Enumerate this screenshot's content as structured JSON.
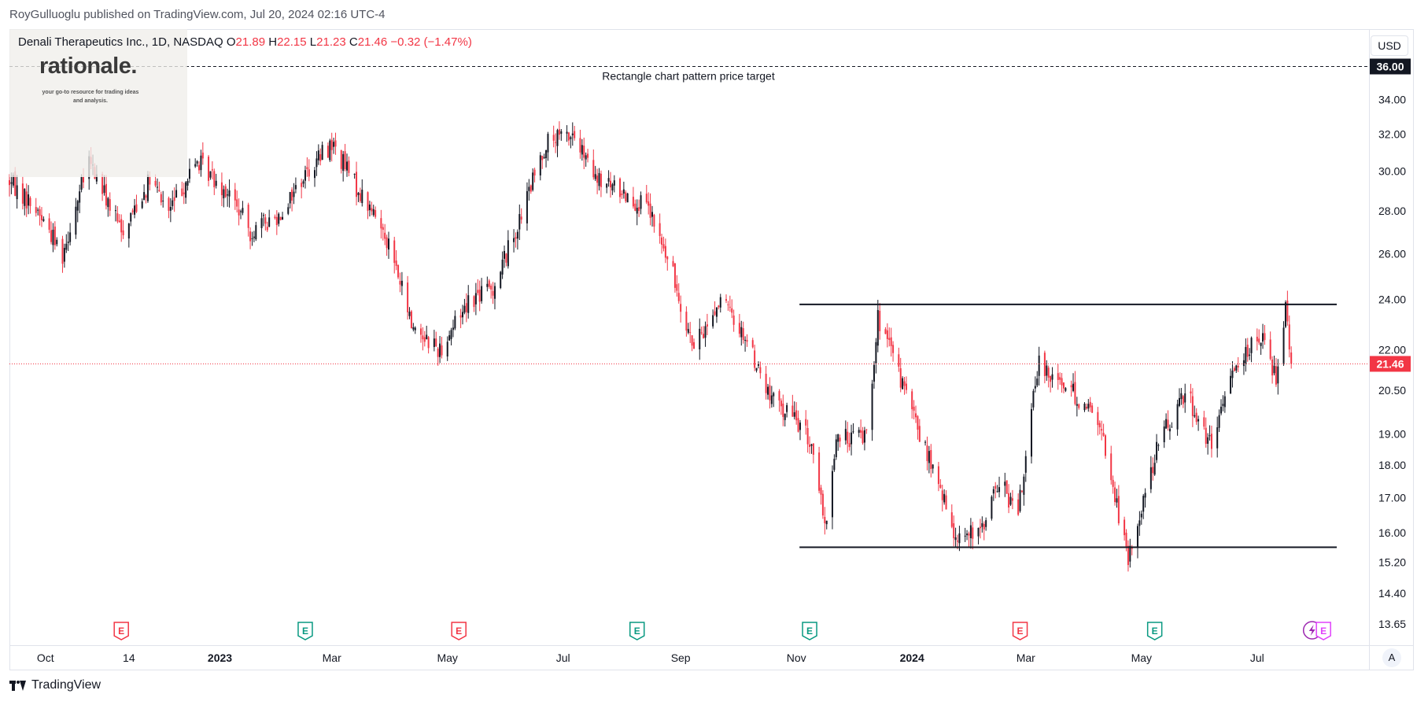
{
  "header": {
    "publisher": "RoyGulluoglu published on TradingView.com, Jul 20, 2024 02:16 UTC-4"
  },
  "legend": {
    "symbol": "Denali Therapeutics Inc., 1D, NASDAQ",
    "open_label": "O",
    "open": "21.89",
    "high_label": "H",
    "high": "22.15",
    "low_label": "L",
    "low": "21.23",
    "close_label": "C",
    "close": "21.46",
    "change": "−0.32 (−1.47%)"
  },
  "watermark": {
    "title": "rationale.",
    "subtitle": "your go-to resource for trading ideas and analysis."
  },
  "currency": "USD",
  "footer": {
    "brand": "TradingView",
    "auto_label": "A"
  },
  "colors": {
    "down": "#f23645",
    "up": "#131722",
    "earnings": "#f23645",
    "earnings_alt": "#089981",
    "dividend": "#9c27b0"
  },
  "chart_data": {
    "type": "candlestick",
    "title": "Denali Therapeutics Inc., 1D, NASDAQ",
    "y_scale": "log",
    "ylim": [
      13.3,
      38.0
    ],
    "y_ticks": [
      {
        "value": 34.0,
        "label": "34.00"
      },
      {
        "value": 32.0,
        "label": "32.00"
      },
      {
        "value": 30.0,
        "label": "30.00"
      },
      {
        "value": 28.0,
        "label": "28.00"
      },
      {
        "value": 26.0,
        "label": "26.00"
      },
      {
        "value": 24.0,
        "label": "24.00"
      },
      {
        "value": 22.0,
        "label": "22.00"
      },
      {
        "value": 20.5,
        "label": "20.50"
      },
      {
        "value": 19.0,
        "label": "19.00"
      },
      {
        "value": 18.0,
        "label": "18.00"
      },
      {
        "value": 17.0,
        "label": "17.00"
      },
      {
        "value": 16.0,
        "label": "16.00"
      },
      {
        "value": 15.2,
        "label": "15.20"
      },
      {
        "value": 14.4,
        "label": "14.40"
      },
      {
        "value": 13.65,
        "label": "13.65"
      }
    ],
    "x_ticks": [
      {
        "date": "2022-10-01",
        "label": "Oct",
        "bold": false
      },
      {
        "date": "2022-11-14",
        "label": "14",
        "bold": false
      },
      {
        "date": "2023-01-01",
        "label": "2023",
        "bold": true
      },
      {
        "date": "2023-03-01",
        "label": "Mar",
        "bold": false
      },
      {
        "date": "2023-05-01",
        "label": "May",
        "bold": false
      },
      {
        "date": "2023-07-01",
        "label": "Jul",
        "bold": false
      },
      {
        "date": "2023-09-01",
        "label": "Sep",
        "bold": false
      },
      {
        "date": "2023-11-01",
        "label": "Nov",
        "bold": false
      },
      {
        "date": "2024-01-01",
        "label": "2024",
        "bold": true
      },
      {
        "date": "2024-03-01",
        "label": "Mar",
        "bold": false
      },
      {
        "date": "2024-05-01",
        "label": "May",
        "bold": false
      },
      {
        "date": "2024-07-01",
        "label": "Jul",
        "bold": false
      }
    ],
    "xlim": [
      "2022-09-12",
      "2024-08-29"
    ],
    "anchors": [
      [
        "2022-09-12",
        29.5
      ],
      [
        "2022-09-27",
        28.0
      ],
      [
        "2022-10-10",
        26.0
      ],
      [
        "2022-10-24",
        30.5
      ],
      [
        "2022-11-10",
        27.0
      ],
      [
        "2022-11-25",
        29.5
      ],
      [
        "2022-12-05",
        28.0
      ],
      [
        "2022-12-20",
        30.5
      ],
      [
        "2023-01-05",
        29.0
      ],
      [
        "2023-01-17",
        27.0
      ],
      [
        "2023-02-01",
        27.8
      ],
      [
        "2023-02-16",
        30.0
      ],
      [
        "2023-03-01",
        31.5
      ],
      [
        "2023-03-15",
        29.0
      ],
      [
        "2023-03-29",
        27.0
      ],
      [
        "2023-04-12",
        23.0
      ],
      [
        "2023-04-27",
        22.0
      ],
      [
        "2023-05-12",
        24.0
      ],
      [
        "2023-05-25",
        24.5
      ],
      [
        "2023-06-08",
        27.5
      ],
      [
        "2023-06-22",
        31.5
      ],
      [
        "2023-07-06",
        32.0
      ],
      [
        "2023-07-18",
        29.5
      ],
      [
        "2023-08-01",
        29.0
      ],
      [
        "2023-08-15",
        28.0
      ],
      [
        "2023-08-28",
        25.0
      ],
      [
        "2023-09-08",
        22.0
      ],
      [
        "2023-09-22",
        24.0
      ],
      [
        "2023-10-05",
        22.5
      ],
      [
        "2023-10-18",
        20.2
      ],
      [
        "2023-11-01",
        19.5
      ],
      [
        "2023-11-10",
        18.5
      ],
      [
        "2023-11-16",
        16.0
      ],
      [
        "2023-11-22",
        18.8
      ],
      [
        "2023-12-08",
        19.0
      ],
      [
        "2023-12-14",
        23.2
      ],
      [
        "2024-01-05",
        19.0
      ],
      [
        "2024-01-23",
        16.0
      ],
      [
        "2024-02-05",
        15.9
      ],
      [
        "2024-02-16",
        17.5
      ],
      [
        "2024-02-26",
        16.5
      ],
      [
        "2024-03-08",
        21.5
      ],
      [
        "2024-03-25",
        20.5
      ],
      [
        "2024-04-08",
        19.5
      ],
      [
        "2024-04-24",
        15.2
      ],
      [
        "2024-05-09",
        18.5
      ],
      [
        "2024-05-24",
        20.5
      ],
      [
        "2024-06-07",
        18.5
      ],
      [
        "2024-06-19",
        21.5
      ],
      [
        "2024-07-03",
        22.5
      ],
      [
        "2024-07-11",
        21.0
      ],
      [
        "2024-07-16",
        23.8
      ],
      [
        "2024-07-19",
        21.46
      ]
    ],
    "last_close": 21.46,
    "last_close_label": "21.46",
    "annotations": [
      {
        "type": "hline",
        "value": 36.0,
        "label": "36.00",
        "style": "dashed",
        "text": "Rectangle chart pattern price target"
      },
      {
        "type": "segment",
        "value": 23.8,
        "from": "2023-11-01",
        "to": "2024-08-12"
      },
      {
        "type": "segment",
        "value": 15.6,
        "from": "2023-11-01",
        "to": "2024-08-12"
      }
    ],
    "events": [
      {
        "date": "2022-11-10",
        "kind": "E",
        "color": "#f23645"
      },
      {
        "date": "2023-02-15",
        "kind": "E",
        "color": "#089981"
      },
      {
        "date": "2023-05-07",
        "kind": "E",
        "color": "#f23645"
      },
      {
        "date": "2023-08-09",
        "kind": "E",
        "color": "#089981"
      },
      {
        "date": "2023-11-08",
        "kind": "E",
        "color": "#089981"
      },
      {
        "date": "2024-02-27",
        "kind": "E",
        "color": "#f23645"
      },
      {
        "date": "2024-05-08",
        "kind": "E",
        "color": "#089981"
      },
      {
        "date": "2024-07-30",
        "kind": "lightning",
        "color": "#9c27b0"
      },
      {
        "date": "2024-08-05",
        "kind": "E",
        "color": "#e040fb"
      }
    ]
  }
}
